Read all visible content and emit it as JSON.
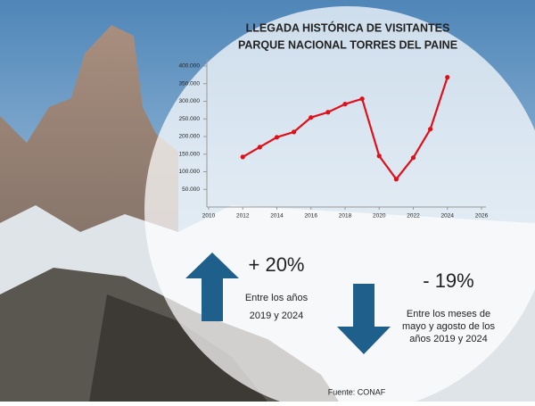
{
  "chart_data": {
    "type": "line",
    "title": [
      "LLEGADA HISTÓRICA DE VISITANTES",
      "PARQUE NACIONAL TORRES DEL PAINE"
    ],
    "x": [
      2012,
      2013,
      2014,
      2015,
      2016,
      2017,
      2018,
      2019,
      2020,
      2021,
      2022,
      2023,
      2024
    ],
    "series": [
      {
        "color": "#e0101a",
        "values": [
          142000,
          170000,
          198000,
          213000,
          254000,
          269000,
          292000,
          307000,
          145000,
          79000,
          140000,
          221000,
          368000
        ]
      }
    ],
    "xlim": [
      2010,
      2026
    ],
    "xticks": [
      2010,
      2012,
      2014,
      2016,
      2018,
      2020,
      2022,
      2024,
      2026
    ],
    "ylim": [
      0,
      400000
    ],
    "yticks": [
      {
        "value": 50000,
        "label": "50.000"
      },
      {
        "value": 100000,
        "label": "100.000"
      },
      {
        "value": 150000,
        "label": "150.000"
      },
      {
        "value": 200000,
        "label": "200.000"
      },
      {
        "value": 250000,
        "label": "250.000"
      },
      {
        "value": 300000,
        "label": "300.000"
      },
      {
        "value": 350000,
        "label": "350.000"
      },
      {
        "value": 400000,
        "label": "400.000"
      }
    ],
    "annotations": {
      "up": {
        "value": "+ 20%",
        "lines": [
          "Entre los años",
          "2019 y 2024"
        ]
      },
      "down": {
        "value": "- 19%",
        "lines": [
          "Entre los meses de",
          "mayo y agosto de los",
          "años 2019 y 2024"
        ]
      },
      "source": "Fuente: CONAF"
    }
  }
}
